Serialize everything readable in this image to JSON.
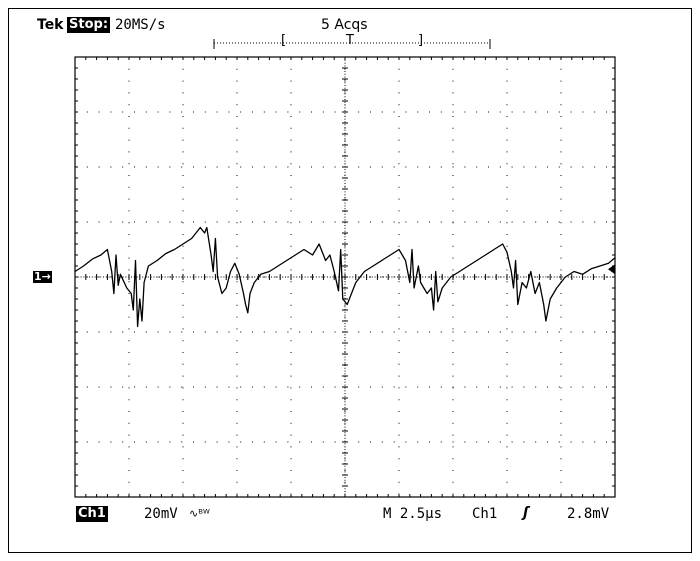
{
  "header": {
    "brand": "Tek",
    "state": "Stop:",
    "sample_rate": "20MS/s",
    "acquisitions": "5 Acqs",
    "record_left_bracket": "[",
    "trigger_marker": "T",
    "record_right_bracket": "]"
  },
  "channel_marker": "1→",
  "footer": {
    "channel": "Ch1",
    "volts_per_div": "20mV",
    "bandwidth_symbol": "∿ᴮᵂ",
    "timebase": "M 2.5µs",
    "trigger_source": "Ch1",
    "trigger_slope": "ʃ",
    "trigger_level": "2.8mV"
  },
  "colors": {
    "background": "#ffffff",
    "trace": "#000000",
    "grid": "#000000"
  },
  "chart_data": {
    "type": "line",
    "grid_divisions": [
      10,
      8
    ],
    "grid": true,
    "x_units": "µs",
    "y_units": "mV",
    "x_per_div": 2.5,
    "y_per_div": 20,
    "xlim": [
      0,
      25
    ],
    "ylim": [
      -80,
      80
    ],
    "series": [
      {
        "values": [
          [
            0.0,
            2.0
          ],
          [
            0.4,
            4.0
          ],
          [
            0.8,
            6.5
          ],
          [
            1.2,
            8.0
          ],
          [
            1.5,
            10.0
          ],
          [
            1.7,
            2.0
          ],
          [
            1.8,
            -6.0
          ],
          [
            1.9,
            8.0
          ],
          [
            2.0,
            -3.0
          ],
          [
            2.1,
            1.0
          ],
          [
            2.4,
            -4.0
          ],
          [
            2.6,
            -6.0
          ],
          [
            2.7,
            -12.0
          ],
          [
            2.8,
            6.0
          ],
          [
            2.9,
            -18.0
          ],
          [
            3.0,
            -8.0
          ],
          [
            3.1,
            -16.0
          ],
          [
            3.2,
            -2.0
          ],
          [
            3.4,
            4.0
          ],
          [
            3.8,
            6.0
          ],
          [
            4.2,
            8.5
          ],
          [
            4.6,
            10.0
          ],
          [
            5.0,
            12.0
          ],
          [
            5.4,
            14.0
          ],
          [
            5.8,
            18.0
          ],
          [
            6.0,
            16.0
          ],
          [
            6.1,
            18.0
          ],
          [
            6.3,
            8.0
          ],
          [
            6.4,
            2.0
          ],
          [
            6.5,
            14.0
          ],
          [
            6.6,
            0.0
          ],
          [
            6.8,
            -6.0
          ],
          [
            7.0,
            -4.0
          ],
          [
            7.2,
            2.0
          ],
          [
            7.4,
            5.0
          ],
          [
            7.6,
            1.0
          ],
          [
            7.8,
            -6.0
          ],
          [
            7.9,
            -10.0
          ],
          [
            8.0,
            -13.0
          ],
          [
            8.1,
            -6.0
          ],
          [
            8.3,
            -2.0
          ],
          [
            8.6,
            1.0
          ],
          [
            9.0,
            2.0
          ],
          [
            9.4,
            4.0
          ],
          [
            9.8,
            6.0
          ],
          [
            10.2,
            8.0
          ],
          [
            10.6,
            10.0
          ],
          [
            11.0,
            8.0
          ],
          [
            11.3,
            12.0
          ],
          [
            11.6,
            6.0
          ],
          [
            11.8,
            8.0
          ],
          [
            12.0,
            2.0
          ],
          [
            12.2,
            -5.0
          ],
          [
            12.3,
            10.0
          ],
          [
            12.4,
            -8.0
          ],
          [
            12.6,
            -10.0
          ],
          [
            12.8,
            -6.0
          ],
          [
            13.0,
            -2.0
          ],
          [
            13.4,
            2.0
          ],
          [
            13.8,
            4.0
          ],
          [
            14.2,
            6.0
          ],
          [
            14.6,
            8.0
          ],
          [
            15.0,
            10.0
          ],
          [
            15.3,
            6.0
          ],
          [
            15.5,
            -2.0
          ],
          [
            15.6,
            10.0
          ],
          [
            15.7,
            -4.0
          ],
          [
            15.9,
            4.0
          ],
          [
            16.0,
            -2.0
          ],
          [
            16.3,
            -6.0
          ],
          [
            16.5,
            -4.0
          ],
          [
            16.6,
            -12.0
          ],
          [
            16.7,
            2.0
          ],
          [
            16.8,
            -9.0
          ],
          [
            17.0,
            -4.0
          ],
          [
            17.4,
            0.0
          ],
          [
            17.8,
            2.0
          ],
          [
            18.2,
            4.0
          ],
          [
            18.6,
            6.0
          ],
          [
            19.0,
            8.0
          ],
          [
            19.4,
            10.0
          ],
          [
            19.8,
            12.0
          ],
          [
            20.0,
            9.0
          ],
          [
            20.2,
            2.0
          ],
          [
            20.3,
            -4.0
          ],
          [
            20.4,
            6.0
          ],
          [
            20.5,
            -10.0
          ],
          [
            20.7,
            -2.0
          ],
          [
            20.9,
            -4.0
          ],
          [
            21.1,
            2.0
          ],
          [
            21.3,
            -6.0
          ],
          [
            21.5,
            -2.0
          ],
          [
            21.7,
            -10.0
          ],
          [
            21.8,
            -16.0
          ],
          [
            22.0,
            -8.0
          ],
          [
            22.3,
            -4.0
          ],
          [
            22.7,
            0.0
          ],
          [
            23.1,
            2.0
          ],
          [
            23.5,
            1.0
          ],
          [
            23.9,
            3.0
          ],
          [
            24.3,
            4.0
          ],
          [
            24.7,
            5.0
          ],
          [
            25.0,
            7.0
          ]
        ]
      }
    ]
  }
}
